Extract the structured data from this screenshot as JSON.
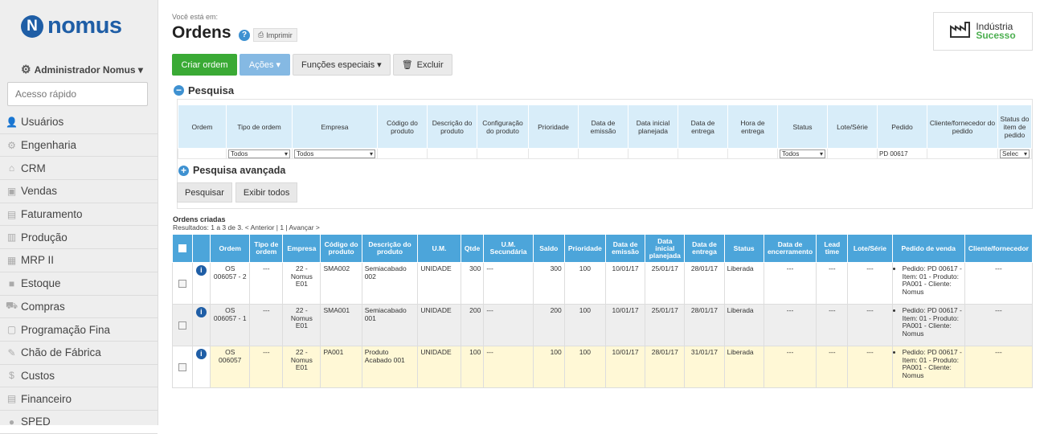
{
  "logo": {
    "mark": "N",
    "text": "nomus"
  },
  "user": {
    "name": "Administrador Nomus ▾",
    "icon": "gear-icon"
  },
  "quick_search": {
    "placeholder": "Acesso rápido"
  },
  "nav": [
    {
      "label": "Usuários",
      "icon": "user-icon"
    },
    {
      "label": "Engenharia",
      "icon": "cog-icon"
    },
    {
      "label": "CRM",
      "icon": "home-icon"
    },
    {
      "label": "Vendas",
      "icon": "cash-register-icon"
    },
    {
      "label": "Faturamento",
      "icon": "invoice-icon"
    },
    {
      "label": "Produção",
      "icon": "factory-icon"
    },
    {
      "label": "MRP II",
      "icon": "sitemap-icon"
    },
    {
      "label": "Estoque",
      "icon": "box-icon"
    },
    {
      "label": "Compras",
      "icon": "cart-icon"
    },
    {
      "label": "Programação Fina",
      "icon": "document-icon"
    },
    {
      "label": "Chão de Fábrica",
      "icon": "wrench-icon"
    },
    {
      "label": "Custos",
      "icon": "dollar-icon"
    },
    {
      "label": "Financeiro",
      "icon": "ledger-icon"
    },
    {
      "label": "SPED",
      "icon": "sped-icon"
    }
  ],
  "breadcrumb": "Você está em:",
  "page_title": "Ordens",
  "help": "?",
  "print_label": "Imprimir",
  "brand": {
    "line1": "Indústria",
    "line2": "Sucesso"
  },
  "toolbar": {
    "create": "Criar ordem",
    "actions": "Ações ▾",
    "special": "Funções especiais ▾",
    "delete": "Excluir"
  },
  "search": {
    "title": "Pesquisa",
    "toggle": "−",
    "advanced": "Pesquisa avançada",
    "advanced_toggle": "+",
    "btn_search": "Pesquisar",
    "btn_all": "Exibir todos"
  },
  "filters": {
    "headers": [
      "Ordem",
      "Tipo de ordem",
      "Empresa",
      "Código do produto",
      "Descrição do produto",
      "Configuração do produto",
      "Prioridade",
      "Data de emissão",
      "Data inicial planejada",
      "Data de entrega",
      "Hora de entrega",
      "Status",
      "Lote/Série",
      "Pedido",
      "Cliente/fornecedor do pedido",
      "Status do item de pedido"
    ],
    "tipo": "Todos",
    "empresa": "Todos",
    "status": "Todos",
    "pedido": "PD 00617",
    "status_item": "Selec"
  },
  "orders": {
    "title": "Ordens criadas",
    "results": "Resultados: 1 a 3 de 3. < Anterior | 1 | Avançar >",
    "columns": [
      "Ordem",
      "Tipo de ordem",
      "Empresa",
      "Código do produto",
      "Descrição do produto",
      "U.M.",
      "Qtde",
      "U.M. Secundária",
      "Saldo",
      "Prioridade",
      "Data de emissão",
      "Data inicial planejada",
      "Data de entrega",
      "Status",
      "Data de encerramento",
      "Lead time",
      "Lote/Série",
      "Pedido de venda",
      "Cliente/fornecedor"
    ],
    "rows": [
      {
        "ordem": "OS 006057 - 2",
        "tipo": "---",
        "empresa": "22 - Nomus E01",
        "codigo": "SMA002",
        "descricao": "Semiacabado 002",
        "um": "UNIDADE",
        "qtde": "300",
        "um2": "---",
        "saldo": "300",
        "prioridade": "100",
        "emissao": "10/01/17",
        "inicial": "25/01/17",
        "entrega": "28/01/17",
        "status": "Liberada",
        "encerramento": "---",
        "lead": "---",
        "lote": "---",
        "pedido": "Pedido: PD 00617 - Item: 01 - Produto: PA001 - Cliente: Nomus",
        "cliente": "---"
      },
      {
        "ordem": "OS 006057 - 1",
        "tipo": "---",
        "empresa": "22 - Nomus E01",
        "codigo": "SMA001",
        "descricao": "Semiacabado 001",
        "um": "UNIDADE",
        "qtde": "200",
        "um2": "---",
        "saldo": "200",
        "prioridade": "100",
        "emissao": "10/01/17",
        "inicial": "25/01/17",
        "entrega": "28/01/17",
        "status": "Liberada",
        "encerramento": "---",
        "lead": "---",
        "lote": "---",
        "pedido": "Pedido: PD 00617 - Item: 01 - Produto: PA001 - Cliente: Nomus",
        "cliente": "---"
      },
      {
        "ordem": "OS 006057",
        "tipo": "---",
        "empresa": "22 - Nomus E01",
        "codigo": "PA001",
        "descricao": "Produto Acabado 001",
        "um": "UNIDADE",
        "qtde": "100",
        "um2": "---",
        "saldo": "100",
        "prioridade": "100",
        "emissao": "10/01/17",
        "inicial": "28/01/17",
        "entrega": "31/01/17",
        "status": "Liberada",
        "encerramento": "---",
        "lead": "---",
        "lote": "---",
        "pedido": "Pedido: PD 00617 - Item: 01 - Produto: PA001 - Cliente: Nomus",
        "cliente": "---"
      }
    ]
  }
}
